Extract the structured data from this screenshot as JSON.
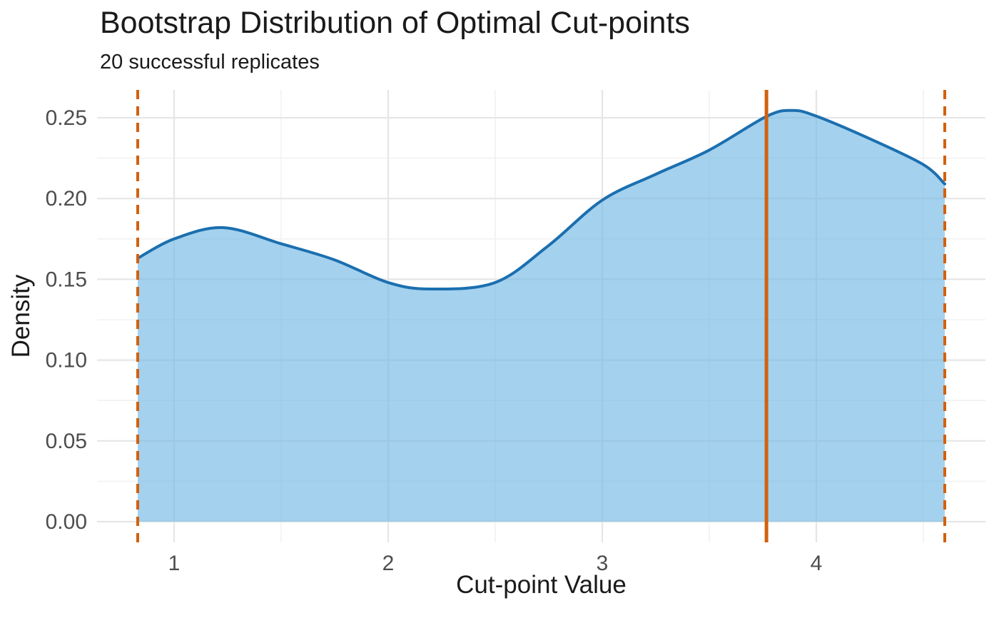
{
  "header": {
    "title": "Bootstrap Distribution of Optimal Cut-points",
    "subtitle": "20 successful replicates"
  },
  "chart_data": {
    "type": "area",
    "title": "Bootstrap Distribution of Optimal Cut-points",
    "subtitle": "20 successful replicates",
    "xlabel": "Cut-point Value",
    "ylabel": "Density",
    "xlim": [
      0.641,
      4.789
    ],
    "ylim": [
      -0.0127,
      0.2671
    ],
    "grid": true,
    "legend": "none",
    "x_ticks": [
      1,
      2,
      3,
      4
    ],
    "x_tick_labels": [
      "1",
      "2",
      "3",
      "4"
    ],
    "x_minor_ticks": [
      1.5,
      2.5,
      3.5,
      4.5
    ],
    "y_ticks": [
      0.0,
      0.05,
      0.1,
      0.15,
      0.2,
      0.25
    ],
    "y_tick_labels": [
      "0.00",
      "0.05",
      "0.10",
      "0.15",
      "0.20",
      "0.25"
    ],
    "y_minor_ticks": [
      0.025,
      0.075,
      0.125,
      0.175,
      0.225
    ],
    "series": [
      {
        "name": "bootstrap-cutpoint-density",
        "x": [
          0.83,
          1.0,
          1.23,
          1.5,
          1.75,
          2.0,
          2.2,
          2.5,
          2.75,
          3.0,
          3.25,
          3.5,
          3.77,
          3.89,
          4.0,
          4.25,
          4.5,
          4.6
        ],
        "y": [
          0.163,
          0.175,
          0.182,
          0.172,
          0.162,
          0.148,
          0.144,
          0.148,
          0.171,
          0.199,
          0.215,
          0.23,
          0.251,
          0.2545,
          0.251,
          0.237,
          0.221,
          0.209
        ]
      }
    ],
    "vlines": [
      {
        "x": 0.83,
        "style": "dashed",
        "role": "ci-lower"
      },
      {
        "x": 3.767,
        "style": "solid",
        "role": "estimate"
      },
      {
        "x": 4.6,
        "style": "dashed",
        "role": "ci-upper"
      }
    ],
    "colors": {
      "area_fill": "rgba(108,181,228,0.62)",
      "density_line": "#1B6FAF",
      "vline_orange": "#D2610E",
      "grid_major": "#E6E6E6",
      "grid_minor": "#F2F2F2",
      "tick_label": "#4D4D4D",
      "text": "#1A1A1A",
      "background": "#FFFFFF"
    }
  }
}
